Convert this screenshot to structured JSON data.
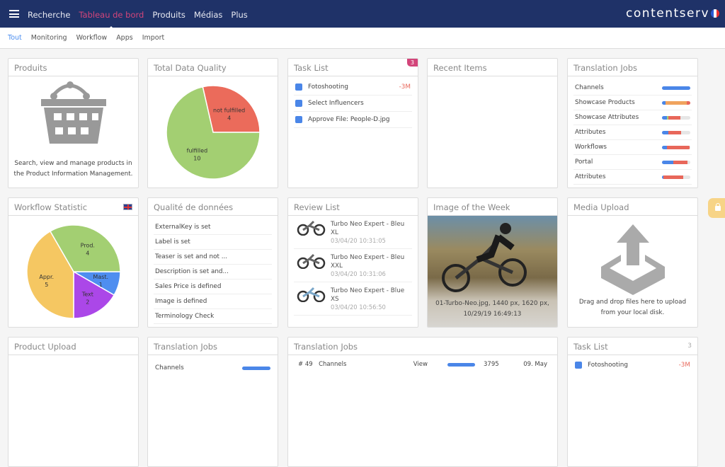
{
  "topbar": {
    "menu_icon": "hamburger-icon",
    "nav": [
      "Recherche",
      "Tableau de bord",
      "Produits",
      "Médias",
      "Plus"
    ],
    "active": "Tableau de bord",
    "logo": "contentserv",
    "language_flag": "fr-flag-icon"
  },
  "subnav": {
    "tabs": [
      "Tout",
      "Monitoring",
      "Workflow",
      "Apps",
      "Import"
    ],
    "active": "Tout"
  },
  "colors": {
    "nav_bg": "#1f3268",
    "active_nav": "#d3457a",
    "active_tab": "#4a8df0",
    "blue": "#4a86e8",
    "red": "#e8675a",
    "orange": "#f0a35e",
    "green": "#a3cf72",
    "yellow": "#f5c762",
    "purple": "#ab47e8",
    "lock": "#f7d487"
  },
  "produits": {
    "title": "Produits",
    "icon": "basket-icon",
    "text": "Search, view and manage products in the Product Information Management."
  },
  "total_quality": {
    "title": "Total Data Quality",
    "chart_data": {
      "type": "pie",
      "slices": [
        {
          "label": "not fulfilled",
          "value": 4,
          "color": "#eb6b5b"
        },
        {
          "label": "fulfilled",
          "value": 10,
          "color": "#a3cf72"
        }
      ]
    }
  },
  "task_list": {
    "title": "Task List",
    "badge": "3",
    "items": [
      {
        "label": "Fotoshooting",
        "due": "-3M"
      },
      {
        "label": "Select Influencers",
        "due": ""
      },
      {
        "label": "Approve File: People-D.jpg",
        "due": ""
      }
    ]
  },
  "recent": {
    "title": "Recent Items"
  },
  "translation_jobs": {
    "title": "Translation Jobs",
    "items": [
      {
        "label": "Channels",
        "segments": [
          [
            100,
            "#4a86e8"
          ]
        ]
      },
      {
        "label": "Showcase Products",
        "segments": [
          [
            12,
            "#4a86e8"
          ],
          [
            75,
            "#f0a35e"
          ],
          [
            13,
            "#e8675a"
          ]
        ]
      },
      {
        "label": "Showcase Attributes",
        "segments": [
          [
            18,
            "#4a86e8"
          ],
          [
            5,
            "#a3cf72"
          ],
          [
            42,
            "#e8675a"
          ]
        ]
      },
      {
        "label": "Attributes",
        "segments": [
          [
            22,
            "#4a86e8"
          ],
          [
            45,
            "#e8675a"
          ]
        ]
      },
      {
        "label": "Workflows",
        "segments": [
          [
            18,
            "#4a86e8"
          ],
          [
            80,
            "#e8675a"
          ]
        ]
      },
      {
        "label": "Portal",
        "segments": [
          [
            40,
            "#4a86e8"
          ],
          [
            50,
            "#e8675a"
          ]
        ]
      },
      {
        "label": "Attributes",
        "segments": [
          [
            5,
            "#4a86e8"
          ],
          [
            70,
            "#e8675a"
          ]
        ]
      }
    ]
  },
  "workflow": {
    "title": "Workflow Statistic",
    "flag": "uk-flag-icon",
    "chart_data": {
      "type": "pie",
      "slices": [
        {
          "label": "Mast.",
          "value": 1,
          "color": "#4f8ef0"
        },
        {
          "label": "Text",
          "value": 2,
          "color": "#ab47e8"
        },
        {
          "label": "Appr.",
          "value": 5,
          "color": "#f5c762"
        },
        {
          "label": "Prod.",
          "value": 4,
          "color": "#a3cf72"
        }
      ]
    }
  },
  "qualite": {
    "title": "Qualité de données",
    "items": [
      "ExternalKey is set",
      "Label is set",
      "Teaser is set and not ...",
      "Description is set and...",
      "Sales Price is defined",
      "Image is defined",
      "Terminology Check"
    ]
  },
  "review": {
    "title": "Review List",
    "items": [
      {
        "name": "Turbo Neo Expert - Bleu XL",
        "date": "03/04/20 10:31:05"
      },
      {
        "name": "Turbo Neo Expert - Bleu XXL",
        "date": "03/04/20 10:31:06"
      },
      {
        "name": "Turbo Neo Expert - Blue XS",
        "date": "03/04/20 10:56:50"
      }
    ]
  },
  "image_week": {
    "title": "Image of the Week",
    "caption1": "01-Turbo-Neo.jpg, 1440 px, 1620 px,",
    "caption2": "10/29/19 16:49:13"
  },
  "media_upload": {
    "title": "Media Upload",
    "icon": "upload-icon",
    "text1": "Drag and drop files here to upload",
    "text2": "from your local disk."
  },
  "row3": {
    "product_upload": "Product Upload",
    "translation_jobs": "Translation Jobs",
    "tj_first": "Channels",
    "translation_jobs_wide": "Translation Jobs",
    "tjw_row": {
      "id": "# 49",
      "name": "Channels",
      "action": "View",
      "count": "3795",
      "date": "09. May"
    },
    "task_list": "Task List",
    "task_count": "3",
    "task_first": "Fotoshooting",
    "task_due": "-3M"
  }
}
